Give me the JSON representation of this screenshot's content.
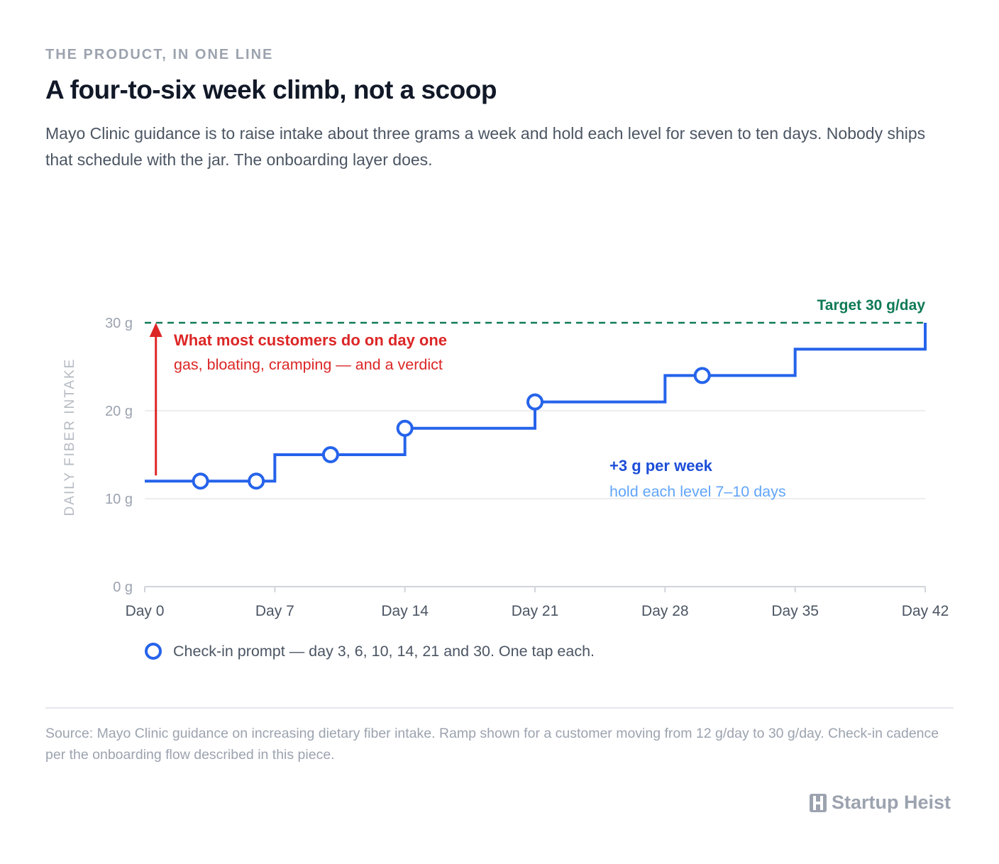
{
  "header": {
    "eyebrow": "THE PRODUCT, IN ONE LINE",
    "title": "A four-to-six week climb, not a scoop",
    "subtitle": "Mayo Clinic guidance is to raise intake about three grams a week and hold each level for seven to ten days. Nobody ships that schedule with the jar. The onboarding layer does."
  },
  "chart_data": {
    "type": "line",
    "ylabel": "DAILY FIBER INTAKE",
    "xlim": [
      0,
      42
    ],
    "ylim": [
      0,
      30
    ],
    "x_ticks": [
      {
        "value": 0,
        "label": "Day 0"
      },
      {
        "value": 7,
        "label": "Day 7"
      },
      {
        "value": 14,
        "label": "Day 14"
      },
      {
        "value": 21,
        "label": "Day 21"
      },
      {
        "value": 28,
        "label": "Day 28"
      },
      {
        "value": 35,
        "label": "Day 35"
      },
      {
        "value": 42,
        "label": "Day 42"
      }
    ],
    "y_ticks": [
      {
        "value": 0,
        "label": "0 g"
      },
      {
        "value": 10,
        "label": "10 g"
      },
      {
        "value": 20,
        "label": "20 g"
      },
      {
        "value": 30,
        "label": "30 g"
      }
    ],
    "ramp": {
      "x": [
        0,
        7,
        7,
        14,
        14,
        21,
        21,
        28,
        28,
        35,
        35,
        42,
        42
      ],
      "y": [
        12,
        12,
        15,
        15,
        18,
        18,
        21,
        21,
        24,
        24,
        27,
        27,
        30
      ]
    },
    "checkins": [
      {
        "day": 3,
        "value": 12
      },
      {
        "day": 6,
        "value": 12
      },
      {
        "day": 10,
        "value": 15
      },
      {
        "day": 14,
        "value": 18
      },
      {
        "day": 21,
        "value": 21
      },
      {
        "day": 30,
        "value": 24
      }
    ],
    "target": {
      "value": 30,
      "label": "Target 30 g/day"
    },
    "day_one_jump": {
      "day": 0.6,
      "from": 12,
      "to": 30
    },
    "annotations": {
      "jump_title": "What most customers do on day one",
      "jump_sub": "gas, bloating, cramping — and a verdict",
      "ramp_title": "+3 g per week",
      "ramp_sub": "hold each level 7–10 days"
    },
    "legend": {
      "label": "Check-in prompt — day 3, 6, 10, 14, 21 and 30. One tap each."
    },
    "colors": {
      "ramp": "#2563eb",
      "target": "#0f7a55",
      "jump": "#dc2626",
      "ramp_title": "#1d4ed8",
      "ramp_sub": "#60a5fa",
      "grid": "#e5e7eb",
      "axis": "#d1d5db",
      "tick_label": "#9ca3af",
      "x_tick_label": "#4b5563"
    }
  },
  "footer": {
    "source": "Source: Mayo Clinic guidance on increasing dietary fiber intake. Ramp shown for a customer moving from 12 g/day to 30 g/day. Check-in cadence per the onboarding flow described in this piece.",
    "brand": "Startup Heist"
  }
}
